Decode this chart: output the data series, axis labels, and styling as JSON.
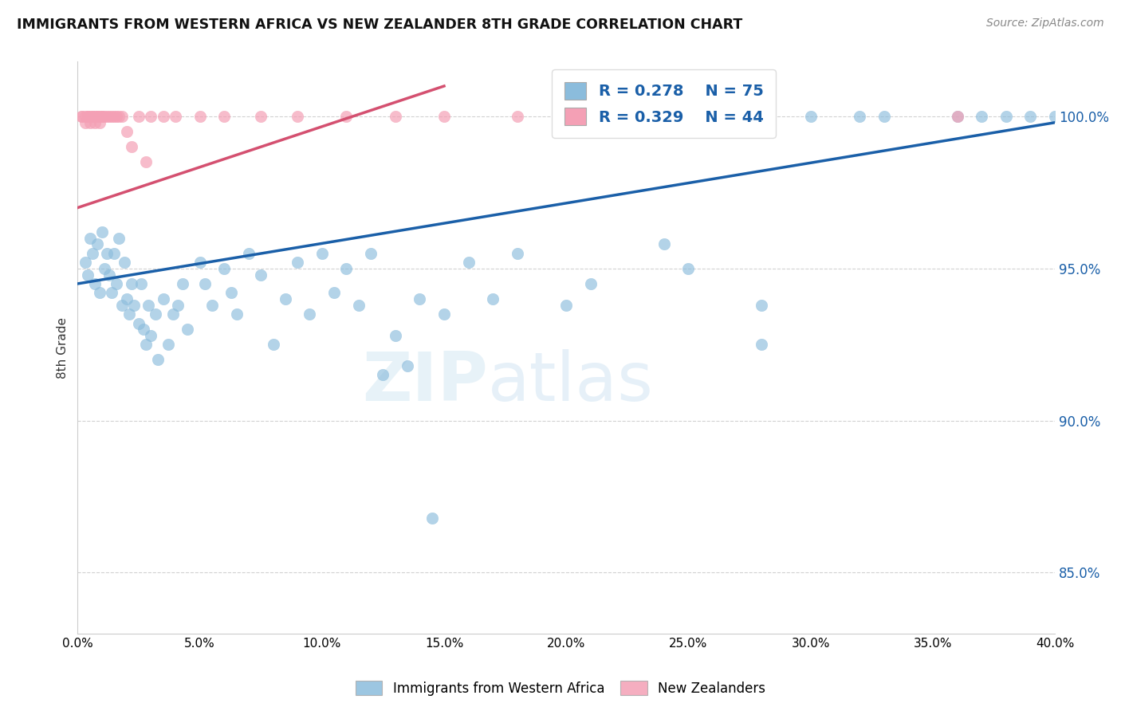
{
  "title": "IMMIGRANTS FROM WESTERN AFRICA VS NEW ZEALANDER 8TH GRADE CORRELATION CHART",
  "source": "Source: ZipAtlas.com",
  "ylabel": "8th Grade",
  "xmin": 0.0,
  "xmax": 40.0,
  "ymin": 83.0,
  "ymax": 101.8,
  "yticks": [
    85.0,
    90.0,
    95.0,
    100.0
  ],
  "xticks": [
    0.0,
    5.0,
    10.0,
    15.0,
    20.0,
    25.0,
    30.0,
    35.0,
    40.0
  ],
  "legend1_label": "Immigrants from Western Africa",
  "legend2_label": "New Zealanders",
  "blue_R": "0.278",
  "blue_N": "75",
  "pink_R": "0.329",
  "pink_N": "44",
  "blue_color": "#8bbcdc",
  "pink_color": "#f4a0b5",
  "blue_line_color": "#1a5fa8",
  "pink_line_color": "#d45070",
  "watermark_zip": "ZIP",
  "watermark_atlas": "atlas",
  "blue_line_x": [
    0.0,
    40.0
  ],
  "blue_line_y": [
    94.5,
    99.8
  ],
  "pink_line_x": [
    0.0,
    15.0
  ],
  "pink_line_y": [
    97.0,
    101.0
  ],
  "blue_x": [
    0.3,
    0.4,
    0.5,
    0.6,
    0.7,
    0.8,
    0.9,
    1.0,
    1.1,
    1.2,
    1.3,
    1.4,
    1.5,
    1.6,
    1.7,
    1.8,
    1.9,
    2.0,
    2.1,
    2.2,
    2.3,
    2.5,
    2.6,
    2.7,
    2.8,
    2.9,
    3.0,
    3.2,
    3.3,
    3.5,
    3.7,
    3.9,
    4.1,
    4.3,
    4.5,
    5.0,
    5.2,
    5.5,
    6.0,
    6.3,
    6.5,
    7.0,
    7.5,
    8.0,
    8.5,
    9.0,
    9.5,
    10.0,
    10.5,
    11.0,
    11.5,
    12.0,
    12.5,
    13.0,
    13.5,
    14.0,
    15.0,
    16.0,
    17.0,
    18.0,
    20.0,
    21.0,
    24.0,
    25.0,
    28.0,
    30.0,
    32.0,
    33.0,
    36.0,
    37.0,
    38.0,
    39.0,
    40.0,
    28.0,
    14.5
  ],
  "blue_y": [
    95.2,
    94.8,
    96.0,
    95.5,
    94.5,
    95.8,
    94.2,
    96.2,
    95.0,
    95.5,
    94.8,
    94.2,
    95.5,
    94.5,
    96.0,
    93.8,
    95.2,
    94.0,
    93.5,
    94.5,
    93.8,
    93.2,
    94.5,
    93.0,
    92.5,
    93.8,
    92.8,
    93.5,
    92.0,
    94.0,
    92.5,
    93.5,
    93.8,
    94.5,
    93.0,
    95.2,
    94.5,
    93.8,
    95.0,
    94.2,
    93.5,
    95.5,
    94.8,
    92.5,
    94.0,
    95.2,
    93.5,
    95.5,
    94.2,
    95.0,
    93.8,
    95.5,
    91.5,
    92.8,
    91.8,
    94.0,
    93.5,
    95.2,
    94.0,
    95.5,
    93.8,
    94.5,
    95.8,
    95.0,
    93.8,
    100.0,
    100.0,
    100.0,
    100.0,
    100.0,
    100.0,
    100.0,
    100.0,
    92.5,
    86.8
  ],
  "pink_x": [
    0.15,
    0.2,
    0.3,
    0.3,
    0.4,
    0.4,
    0.5,
    0.5,
    0.6,
    0.6,
    0.7,
    0.7,
    0.8,
    0.8,
    0.9,
    0.9,
    1.0,
    1.0,
    1.1,
    1.2,
    1.3,
    1.4,
    1.5,
    1.6,
    1.7,
    1.8,
    2.0,
    2.2,
    2.5,
    2.8,
    3.0,
    3.5,
    4.0,
    5.0,
    6.0,
    7.5,
    9.0,
    11.0,
    13.0,
    15.0,
    18.0,
    20.5,
    26.0,
    36.0
  ],
  "pink_y": [
    100.0,
    100.0,
    100.0,
    99.8,
    100.0,
    100.0,
    100.0,
    99.8,
    100.0,
    100.0,
    100.0,
    99.8,
    100.0,
    100.0,
    100.0,
    99.8,
    100.0,
    100.0,
    100.0,
    100.0,
    100.0,
    100.0,
    100.0,
    100.0,
    100.0,
    100.0,
    99.5,
    99.0,
    100.0,
    98.5,
    100.0,
    100.0,
    100.0,
    100.0,
    100.0,
    100.0,
    100.0,
    100.0,
    100.0,
    100.0,
    100.0,
    100.0,
    100.0,
    100.0
  ]
}
